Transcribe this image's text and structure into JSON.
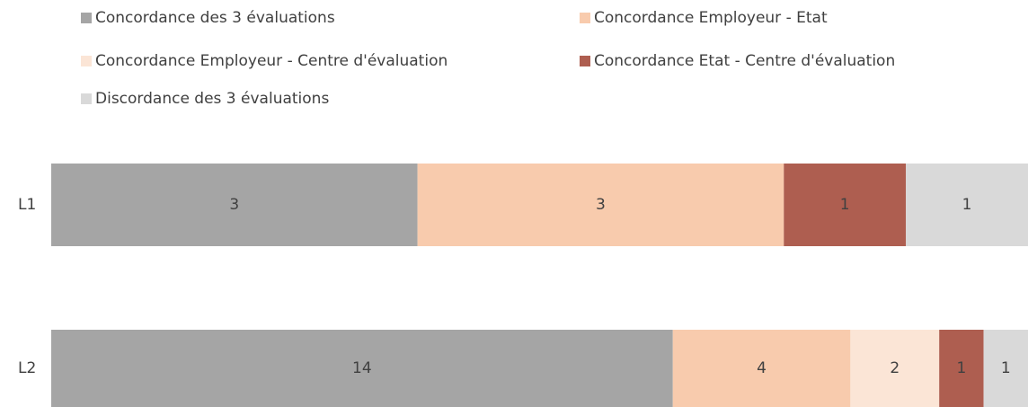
{
  "chart_data": {
    "type": "stacked_bar_100_horizontal",
    "categories": [
      "L1",
      "L2"
    ],
    "series": [
      {
        "name": "Concordance des 3 évaluations",
        "color": "#a5a5a5",
        "values": [
          3,
          14
        ]
      },
      {
        "name": "Concordance Employeur - Etat",
        "color": "#f8cbad",
        "values": [
          3,
          4
        ]
      },
      {
        "name": "Concordance Employeur - Centre d'évaluation",
        "color": "#fbe5d6",
        "values": [
          null,
          2
        ]
      },
      {
        "name": "Concordance Etat - Centre d'évaluation",
        "color": "#ae5e50",
        "values": [
          1,
          1
        ]
      },
      {
        "name": "Discordance des 3 évaluations",
        "color": "#d9d9d9",
        "values": [
          1,
          1
        ]
      }
    ],
    "legend": "top"
  }
}
